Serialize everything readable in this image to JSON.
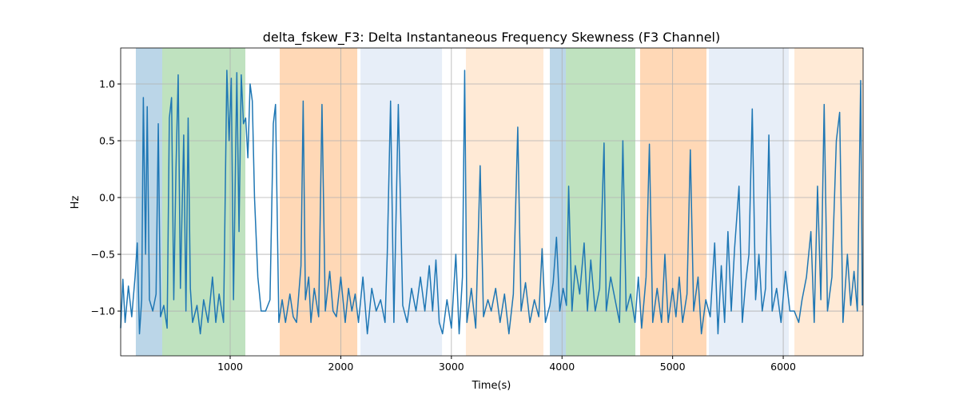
{
  "chart_data": {
    "type": "line",
    "title": "delta_fskew_F3: Delta Instantaneous Frequency Skewness (F3 Channel)",
    "x_label": "Time(s)",
    "y_label": "Hz",
    "xlim": [
      10,
      6722
    ],
    "ylim": [
      -1.394,
      1.317
    ],
    "xticks": [
      1000,
      2000,
      3000,
      4000,
      5000,
      6000
    ],
    "yticks": [
      {
        "value": -1.0,
        "label": "−1.0"
      },
      {
        "value": -0.5,
        "label": "−0.5"
      },
      {
        "value": 0.0,
        "label": "0.0"
      },
      {
        "value": 0.5,
        "label": "0.5"
      },
      {
        "value": 1.0,
        "label": "1.0"
      }
    ],
    "grid": true,
    "spans": [
      {
        "start": 147,
        "end": 386,
        "color": "#1f77b4"
      },
      {
        "start": 386,
        "end": 1137,
        "color": "#2ca02c"
      },
      {
        "start": 1448,
        "end": 2149,
        "color": "#ff7f0e"
      },
      {
        "start": 2178,
        "end": 2915,
        "color": "#aec7e8"
      },
      {
        "start": 3131,
        "end": 3832,
        "color": "#ffbb78"
      },
      {
        "start": 3890,
        "end": 4035,
        "color": "#1f77b4"
      },
      {
        "start": 4035,
        "end": 4663,
        "color": "#2ca02c"
      },
      {
        "start": 4706,
        "end": 5306,
        "color": "#ff7f0e"
      },
      {
        "start": 5328,
        "end": 6050,
        "color": "#aec7e8"
      },
      {
        "start": 6101,
        "end": 6722,
        "color": "#ffbb78"
      }
    ],
    "series": [
      {
        "color": "#1f77b4",
        "x": [
          10,
          30,
          50,
          80,
          110,
          140,
          160,
          180,
          200,
          215,
          235,
          250,
          270,
          300,
          330,
          350,
          370,
          400,
          430,
          450,
          470,
          490,
          510,
          530,
          550,
          580,
          600,
          620,
          640,
          660,
          700,
          730,
          760,
          800,
          840,
          870,
          900,
          940,
          970,
          990,
          1010,
          1030,
          1060,
          1080,
          1100,
          1120,
          1140,
          1160,
          1180,
          1200,
          1220,
          1250,
          1280,
          1320,
          1360,
          1390,
          1410,
          1440,
          1470,
          1500,
          1540,
          1570,
          1600,
          1640,
          1660,
          1680,
          1710,
          1730,
          1760,
          1800,
          1830,
          1860,
          1900,
          1930,
          1960,
          2000,
          2040,
          2070,
          2100,
          2130,
          2160,
          2200,
          2240,
          2280,
          2320,
          2360,
          2400,
          2420,
          2450,
          2480,
          2520,
          2560,
          2600,
          2640,
          2680,
          2720,
          2760,
          2800,
          2830,
          2860,
          2890,
          2920,
          2960,
          3000,
          3040,
          3070,
          3100,
          3120,
          3140,
          3180,
          3220,
          3260,
          3290,
          3330,
          3360,
          3400,
          3440,
          3480,
          3520,
          3560,
          3600,
          3630,
          3670,
          3710,
          3750,
          3790,
          3820,
          3850,
          3890,
          3920,
          3950,
          3980,
          4010,
          4040,
          4060,
          4090,
          4120,
          4160,
          4200,
          4230,
          4260,
          4300,
          4340,
          4380,
          4400,
          4440,
          4480,
          4520,
          4550,
          4580,
          4620,
          4660,
          4690,
          4720,
          4760,
          4790,
          4820,
          4860,
          4900,
          4930,
          4960,
          5000,
          5030,
          5060,
          5090,
          5130,
          5160,
          5190,
          5230,
          5260,
          5300,
          5340,
          5380,
          5410,
          5440,
          5470,
          5500,
          5530,
          5560,
          5600,
          5630,
          5660,
          5690,
          5720,
          5750,
          5780,
          5810,
          5840,
          5870,
          5900,
          5940,
          5980,
          6020,
          6060,
          6100,
          6140,
          6170,
          6210,
          6250,
          6280,
          6310,
          6340,
          6370,
          6400,
          6440,
          6480,
          6510,
          6540,
          6580,
          6610,
          6640,
          6670,
          6700,
          6715
        ],
        "values": [
          -1.15,
          -0.72,
          -1.1,
          -0.78,
          -1.05,
          -0.7,
          -0.4,
          -1.2,
          -0.9,
          0.88,
          -0.5,
          0.8,
          -0.9,
          -1.0,
          -0.85,
          0.65,
          -1.05,
          -0.95,
          -1.15,
          0.7,
          0.88,
          -0.9,
          0.25,
          1.08,
          -0.8,
          0.55,
          -1.0,
          0.7,
          -0.8,
          -1.1,
          -0.95,
          -1.2,
          -0.9,
          -1.1,
          -0.7,
          -1.1,
          -0.85,
          -1.1,
          1.12,
          0.5,
          1.05,
          -0.9,
          1.1,
          -0.3,
          1.08,
          0.65,
          0.7,
          0.35,
          1.0,
          0.85,
          0.0,
          -0.7,
          -1.0,
          -1.0,
          -0.9,
          0.65,
          0.82,
          -1.1,
          -0.9,
          -1.1,
          -0.85,
          -1.05,
          -1.1,
          -0.6,
          0.85,
          -0.9,
          -0.7,
          -1.1,
          -0.8,
          -1.05,
          0.82,
          -1.0,
          -0.65,
          -1.0,
          -1.05,
          -0.7,
          -1.1,
          -0.8,
          -1.0,
          -0.85,
          -1.1,
          -0.7,
          -1.2,
          -0.8,
          -1.0,
          -0.9,
          -1.1,
          -0.5,
          0.85,
          -1.1,
          0.82,
          -0.95,
          -1.1,
          -0.8,
          -1.0,
          -0.7,
          -1.0,
          -0.6,
          -1.0,
          -0.55,
          -1.1,
          -1.2,
          -0.9,
          -1.15,
          -0.5,
          -1.2,
          -0.7,
          1.12,
          -1.1,
          -0.8,
          -1.15,
          0.28,
          -1.05,
          -0.9,
          -1.0,
          -0.8,
          -1.1,
          -0.85,
          -1.2,
          -0.85,
          0.62,
          -1.0,
          -0.75,
          -1.1,
          -0.9,
          -1.05,
          -0.45,
          -1.1,
          -0.95,
          -0.75,
          -0.35,
          -1.0,
          -0.8,
          -0.95,
          0.1,
          -1.0,
          -0.6,
          -0.85,
          -0.4,
          -1.0,
          -0.55,
          -1.0,
          -0.8,
          0.48,
          -1.0,
          -0.7,
          -0.9,
          -1.1,
          0.5,
          -1.0,
          -0.85,
          -1.1,
          -0.7,
          -1.15,
          -0.7,
          0.47,
          -1.1,
          -0.8,
          -1.1,
          -0.5,
          -1.1,
          -0.8,
          -1.05,
          -0.7,
          -1.1,
          -0.85,
          0.42,
          -1.0,
          -0.7,
          -1.2,
          -0.9,
          -1.05,
          -0.4,
          -1.2,
          -0.6,
          -1.1,
          -0.3,
          -1.0,
          -0.45,
          0.1,
          -1.1,
          -0.75,
          -0.5,
          0.78,
          -0.9,
          -0.5,
          -1.0,
          -0.8,
          0.55,
          -1.0,
          -0.8,
          -1.1,
          -0.65,
          -1.0,
          -1.0,
          -1.1,
          -0.9,
          -0.7,
          -0.3,
          -1.1,
          0.1,
          -0.9,
          0.82,
          -1.0,
          -0.7,
          0.5,
          0.75,
          -1.1,
          -0.5,
          -0.95,
          -0.65,
          -1.0,
          1.03,
          -0.95
        ]
      }
    ]
  }
}
